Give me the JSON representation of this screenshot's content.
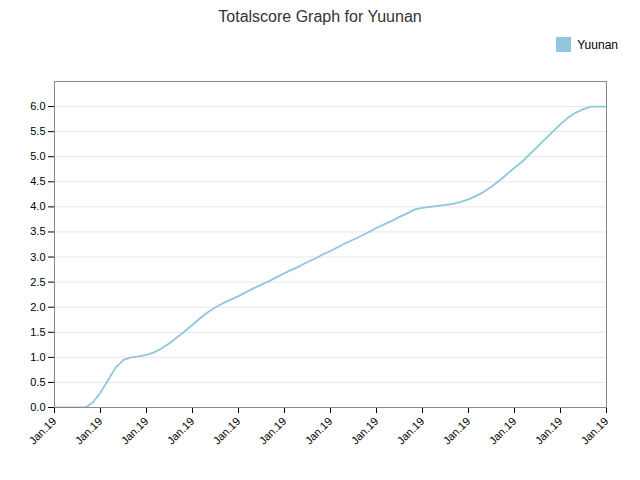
{
  "chart_data": {
    "type": "line",
    "title": "Totalscore Graph for Yuunan",
    "x": [
      0,
      1,
      2,
      3,
      4,
      5,
      6,
      7,
      8,
      9,
      10,
      11,
      12,
      13,
      14,
      15,
      16,
      17,
      18,
      19,
      20,
      21,
      22,
      23,
      24,
      25,
      26,
      27,
      28,
      29,
      30,
      31,
      32,
      33,
      34,
      35,
      36,
      37,
      38,
      39,
      40,
      41,
      42,
      43,
      44,
      45,
      46,
      47,
      48,
      49,
      50,
      51,
      52,
      53,
      54,
      55,
      56,
      57,
      58,
      59,
      60,
      61,
      62,
      63,
      64,
      65,
      66,
      67,
      68,
      69,
      70,
      71,
      72
    ],
    "series": [
      {
        "name": "Yuunan",
        "color": "#92c5de",
        "values": [
          0.0,
          0.0,
          0.0,
          0.0,
          0.0,
          0.1,
          0.3,
          0.55,
          0.8,
          0.95,
          1.0,
          1.02,
          1.05,
          1.1,
          1.18,
          1.28,
          1.4,
          1.52,
          1.65,
          1.78,
          1.9,
          2.0,
          2.08,
          2.15,
          2.22,
          2.3,
          2.38,
          2.45,
          2.52,
          2.6,
          2.68,
          2.75,
          2.82,
          2.9,
          2.97,
          3.05,
          3.12,
          3.2,
          3.28,
          3.35,
          3.42,
          3.5,
          3.58,
          3.65,
          3.72,
          3.8,
          3.87,
          3.95,
          3.98,
          4.0,
          4.02,
          4.04,
          4.06,
          4.1,
          4.15,
          4.22,
          4.3,
          4.4,
          4.52,
          4.65,
          4.78,
          4.9,
          5.05,
          5.2,
          5.35,
          5.5,
          5.65,
          5.78,
          5.88,
          5.95,
          6.0,
          6.0,
          6.0
        ]
      }
    ],
    "xlim": [
      0,
      72
    ],
    "xticks": [
      {
        "value": 0,
        "label": "Jan.19"
      },
      {
        "value": 6,
        "label": "Jan.19"
      },
      {
        "value": 12,
        "label": "Jan.19"
      },
      {
        "value": 18,
        "label": "Jan.19"
      },
      {
        "value": 24,
        "label": "Jan.19"
      },
      {
        "value": 30,
        "label": "Jan.19"
      },
      {
        "value": 36,
        "label": "Jan.19"
      },
      {
        "value": 42,
        "label": "Jan.19"
      },
      {
        "value": 48,
        "label": "Jan.19"
      },
      {
        "value": 54,
        "label": "Jan.19"
      },
      {
        "value": 60,
        "label": "Jan.19"
      },
      {
        "value": 66,
        "label": "Jan.19"
      },
      {
        "value": 72,
        "label": "Jan.19"
      }
    ],
    "ylim": [
      0.0,
      6.5
    ],
    "yticks": [
      {
        "value": 0,
        "label": "0.0"
      },
      0.5,
      {
        "value": 1,
        "label": "1.0"
      },
      1.5,
      {
        "value": 2,
        "label": "2.0"
      },
      2.5,
      {
        "value": 3,
        "label": "3.0"
      },
      3.5,
      {
        "value": 4,
        "label": "4.0"
      },
      4.5,
      {
        "value": 5,
        "label": "5.0"
      },
      5.5,
      {
        "value": 6,
        "label": "6.0"
      }
    ],
    "grid": "y",
    "legend": "top-right"
  }
}
